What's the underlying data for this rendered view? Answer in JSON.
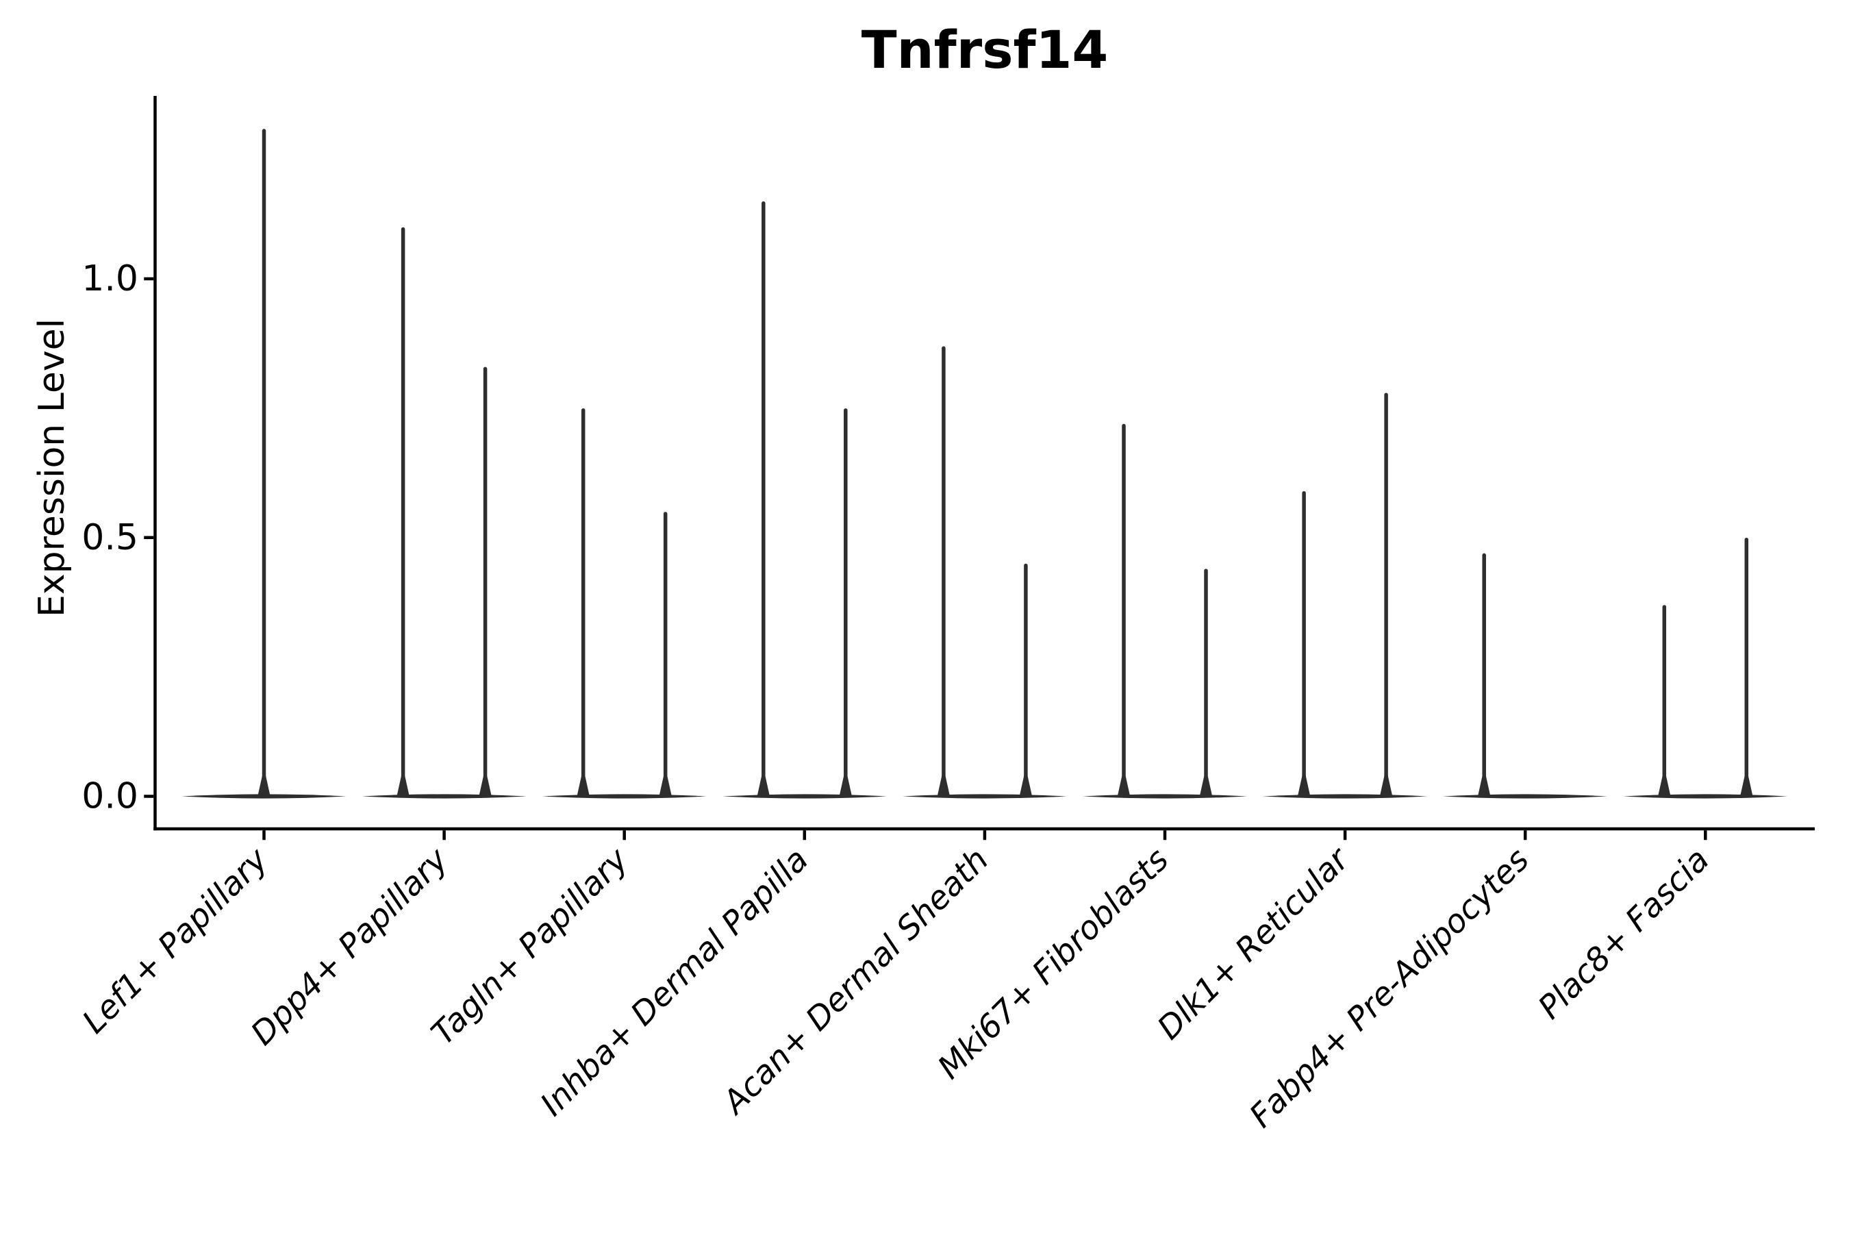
{
  "chart_data": {
    "type": "violin",
    "title": "Tnfrsf14",
    "xlabel": "",
    "ylabel": "Expression Level",
    "ylim": [
      0,
      1.35
    ],
    "ytick_values": [
      0.0,
      0.5,
      1.0
    ],
    "ytick_labels": [
      "0.0",
      "0.5",
      "1.0"
    ],
    "grid": false,
    "legend_position": "none",
    "x_tick_rotation_deg": 45,
    "category_label_style": "italic",
    "ink_color": "#2e2e2e",
    "axis_color": "#000000",
    "background_color": "#ffffff",
    "categories": [
      "Lef1+ Papillary",
      "Dpp4+ Papillary",
      "Tagln+ Papillary",
      "Inhba+ Dermal Papilla",
      "Acan+ Dermal Sheath",
      "Mki67+ Fibroblasts",
      "Dlk1+ Reticular",
      "Fabp4+ Pre-Adipocytes",
      "Plac8+ Fascia"
    ],
    "violins": [
      {
        "category": "Lef1+ Papillary",
        "baseline_value": 0,
        "spikes": [
          {
            "pos": "center",
            "max": 1.29
          }
        ]
      },
      {
        "category": "Dpp4+ Papillary",
        "baseline_value": 0,
        "spikes": [
          {
            "pos": "left",
            "max": 1.1
          },
          {
            "pos": "right",
            "max": 0.83
          }
        ]
      },
      {
        "category": "Tagln+ Papillary",
        "baseline_value": 0,
        "spikes": [
          {
            "pos": "left",
            "max": 0.75
          },
          {
            "pos": "right",
            "max": 0.55
          }
        ]
      },
      {
        "category": "Inhba+ Dermal Papilla",
        "baseline_value": 0,
        "spikes": [
          {
            "pos": "left",
            "max": 1.15
          },
          {
            "pos": "right",
            "max": 0.75
          }
        ]
      },
      {
        "category": "Acan+ Dermal Sheath",
        "baseline_value": 0,
        "spikes": [
          {
            "pos": "left",
            "max": 0.87
          },
          {
            "pos": "right",
            "max": 0.45
          }
        ]
      },
      {
        "category": "Mki67+ Fibroblasts",
        "baseline_value": 0,
        "spikes": [
          {
            "pos": "left",
            "max": 0.72
          },
          {
            "pos": "right",
            "max": 0.44
          }
        ]
      },
      {
        "category": "Dlk1+ Reticular",
        "baseline_value": 0,
        "spikes": [
          {
            "pos": "left",
            "max": 0.59
          },
          {
            "pos": "right",
            "max": 0.78
          }
        ]
      },
      {
        "category": "Fabp4+ Pre-Adipocytes",
        "baseline_value": 0,
        "spikes": [
          {
            "pos": "left",
            "max": 0.47
          }
        ]
      },
      {
        "category": "Plac8+ Fascia",
        "baseline_value": 0,
        "spikes": [
          {
            "pos": "left",
            "max": 0.37
          },
          {
            "pos": "right",
            "max": 0.5
          }
        ]
      }
    ]
  }
}
